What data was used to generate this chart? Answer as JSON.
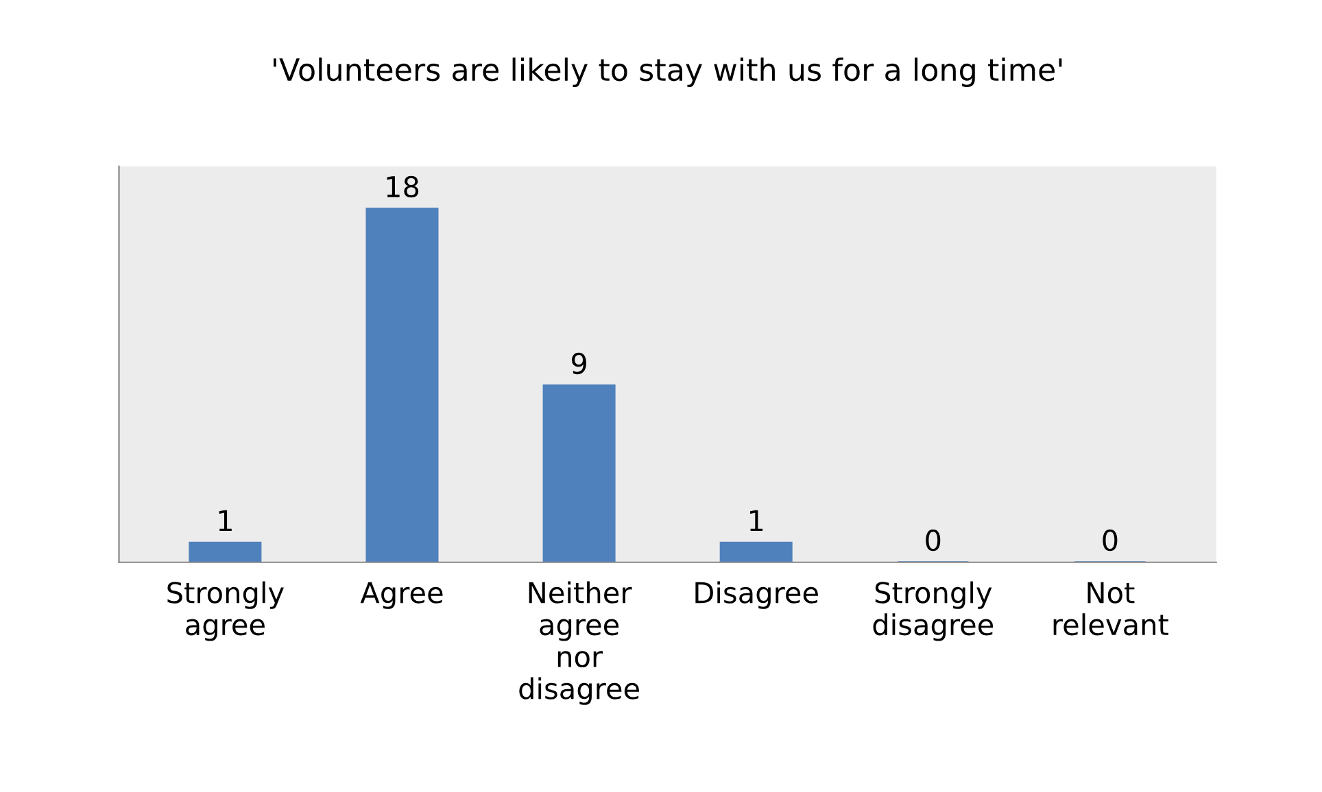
{
  "chart_data": {
    "type": "bar",
    "title": "'Volunteers are likely to stay with us for a long time'",
    "categories": [
      "Strongly agree",
      "Agree",
      "Neither agree nor disagree",
      "Disagree",
      "Strongly disagree",
      "Not relevant"
    ],
    "values": [
      1,
      18,
      9,
      1,
      0,
      0
    ],
    "color": "#4f81bd",
    "data_labels": true,
    "grid": false
  }
}
